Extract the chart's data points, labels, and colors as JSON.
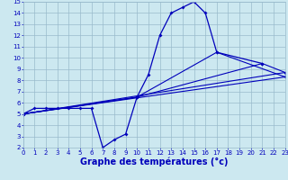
{
  "xlabel": "Graphe des températures (°c)",
  "temp_x": [
    0,
    1,
    2,
    3,
    4,
    5,
    6,
    7,
    8,
    9,
    10,
    11,
    12,
    13,
    14,
    15,
    16,
    17,
    21
  ],
  "temp_y": [
    5.0,
    5.5,
    5.5,
    5.5,
    5.5,
    5.5,
    5.5,
    2.0,
    2.7,
    3.2,
    6.5,
    8.5,
    12.0,
    14.0,
    14.5,
    15.0,
    14.0,
    10.5,
    9.5
  ],
  "line1_x": [
    0,
    23
  ],
  "line1_y": [
    5.0,
    8.3
  ],
  "line2_x": [
    0,
    23
  ],
  "line2_y": [
    5.0,
    8.7
  ],
  "line3_x": [
    0,
    10,
    21,
    23
  ],
  "line3_y": [
    5.0,
    6.5,
    9.5,
    8.7
  ],
  "line4_x": [
    0,
    10,
    17,
    23
  ],
  "line4_y": [
    5.0,
    6.5,
    10.5,
    8.3
  ],
  "xlim": [
    0,
    23
  ],
  "ylim": [
    2,
    15
  ],
  "xticks": [
    0,
    1,
    2,
    3,
    4,
    5,
    6,
    7,
    8,
    9,
    10,
    11,
    12,
    13,
    14,
    15,
    16,
    17,
    18,
    19,
    20,
    21,
    22,
    23
  ],
  "yticks": [
    2,
    3,
    4,
    5,
    6,
    7,
    8,
    9,
    10,
    11,
    12,
    13,
    14,
    15
  ],
  "bg_color": "#cce8f0",
  "line_color": "#0000bb",
  "grid_color": "#99bbcc",
  "tick_fontsize": 5.0,
  "xlabel_fontsize": 7.0
}
